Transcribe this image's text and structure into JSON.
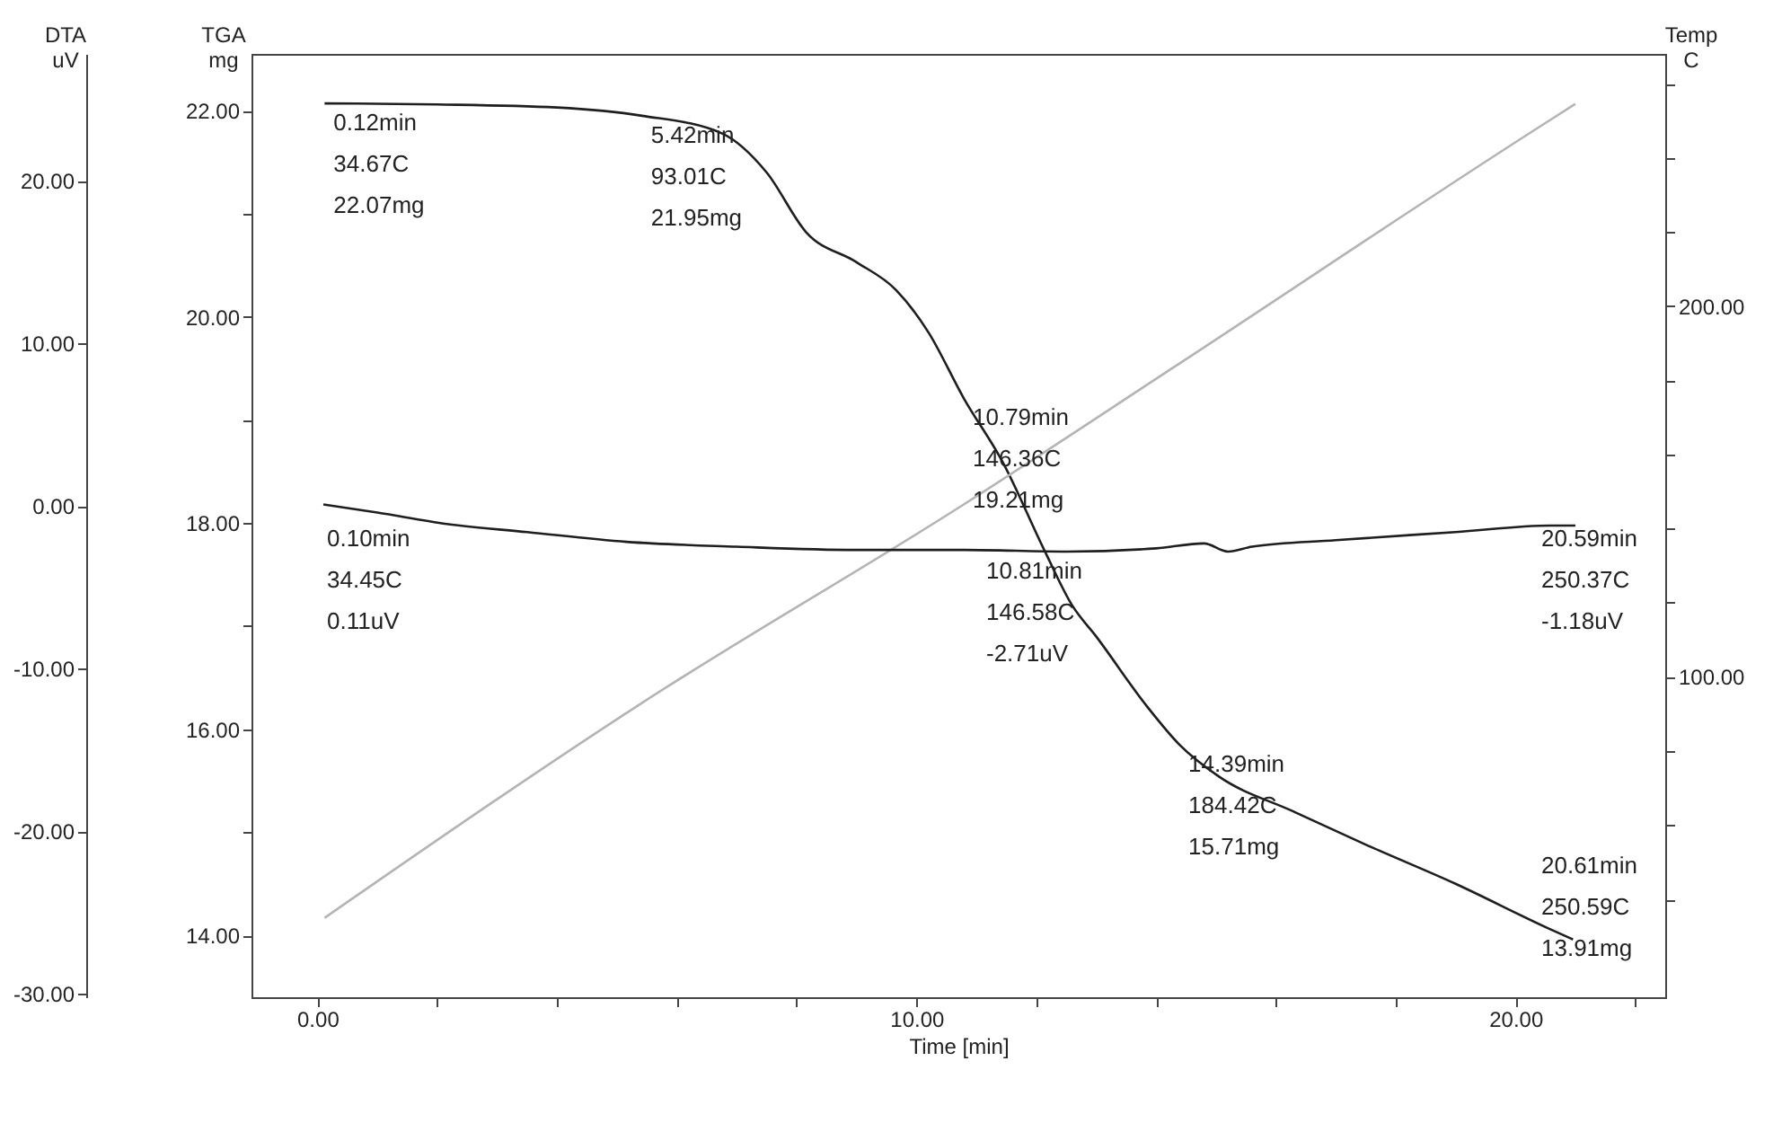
{
  "chart_data": {
    "type": "line",
    "xlabel": "Time [min]",
    "ylabel": "TGA mg",
    "y2label": "Temp C",
    "y3label": "DTA uV",
    "xlim": [
      -1.1,
      22.5
    ],
    "ylim": [
      13.4,
      22.55
    ],
    "y2lim": [
      13.6,
      268
    ],
    "y3lim": [
      -30.2,
      27.8
    ],
    "xticks": [
      {
        "value": 0,
        "label": "0.00"
      },
      {
        "value": 2,
        "label": null
      },
      {
        "value": 4,
        "label": null
      },
      {
        "value": 6,
        "label": null
      },
      {
        "value": 8,
        "label": null
      },
      {
        "value": 10,
        "label": "10.00"
      },
      {
        "value": 12,
        "label": null
      },
      {
        "value": 14,
        "label": null
      },
      {
        "value": 16,
        "label": null
      },
      {
        "value": 18,
        "label": null
      },
      {
        "value": 20,
        "label": "20.00"
      },
      {
        "value": 22,
        "label": null
      }
    ],
    "yticks": [
      {
        "value": 14,
        "label": "14.00"
      },
      {
        "value": 15,
        "label": null
      },
      {
        "value": 16,
        "label": "16.00"
      },
      {
        "value": 17,
        "label": null
      },
      {
        "value": 18,
        "label": "18.00"
      },
      {
        "value": 19,
        "label": null
      },
      {
        "value": 20,
        "label": "20.00"
      },
      {
        "value": 21,
        "label": null
      },
      {
        "value": 22,
        "label": "22.00"
      }
    ],
    "y2ticks": [
      {
        "value": 40,
        "label": null
      },
      {
        "value": 60,
        "label": null
      },
      {
        "value": 80,
        "label": null
      },
      {
        "value": 100,
        "label": "100.00"
      },
      {
        "value": 120,
        "label": null
      },
      {
        "value": 140,
        "label": null
      },
      {
        "value": 160,
        "label": null
      },
      {
        "value": 180,
        "label": null
      },
      {
        "value": 200,
        "label": "200.00"
      },
      {
        "value": 220,
        "label": null
      },
      {
        "value": 240,
        "label": null
      },
      {
        "value": 260,
        "label": null
      }
    ],
    "y3ticks": [
      {
        "value": -30,
        "label": "-30.00"
      },
      {
        "value": -20,
        "label": "-20.00"
      },
      {
        "value": -10,
        "label": "-10.00"
      },
      {
        "value": 0,
        "label": "0.00"
      },
      {
        "value": 10,
        "label": "10.00"
      },
      {
        "value": 20,
        "label": "20.00"
      }
    ],
    "grid": false,
    "line_style": "solid",
    "series": [
      {
        "color": "#1e1e1e",
        "axis": "y",
        "x": [
          0.12,
          2.0,
          4.0,
          5.42,
          6.75,
          7.5,
          8.16,
          9.0,
          9.66,
          10.2,
          10.79,
          11.45,
          12.14,
          12.6,
          13.0,
          13.85,
          14.39,
          15.05,
          16.3,
          17.54,
          19.0,
          20.54,
          20.96
        ],
        "values": [
          22.07,
          22.06,
          22.03,
          21.95,
          21.78,
          21.4,
          20.82,
          20.53,
          20.26,
          19.85,
          19.21,
          18.58,
          17.73,
          17.2,
          16.9,
          16.22,
          15.85,
          15.54,
          15.2,
          14.87,
          14.5,
          14.07,
          13.96
        ]
      },
      {
        "color": "#b4b4b4",
        "axis": "y2",
        "x": [
          0.12,
          5.42,
          10.79,
          14.39,
          20.61,
          21.0
        ],
        "values": [
          35,
          93,
          146.5,
          184.5,
          250.5,
          254.5
        ]
      },
      {
        "color": "#1e1e1e",
        "axis": "y3",
        "x": [
          0.1,
          1.0,
          2.16,
          3.5,
          5.16,
          7.0,
          9.0,
          10.81,
          12.5,
          14.0,
          14.8,
          15.2,
          15.6,
          17.0,
          19.0,
          20.59,
          21.0
        ],
        "values": [
          0.1,
          -0.4,
          -1.1,
          -1.6,
          -2.2,
          -2.5,
          -2.7,
          -2.7,
          -2.8,
          -2.6,
          -2.3,
          -2.8,
          -2.5,
          -2.1,
          -1.6,
          -1.2,
          -1.2
        ]
      }
    ],
    "annotations": [
      {
        "text": "0.12min\n34.67C\n22.07mg",
        "x": 0.12,
        "y": 22.07
      },
      {
        "text": "5.42min\n93.01C\n21.95mg",
        "x": 5.42,
        "y": 21.95
      },
      {
        "text": "10.79min\n146.36C\n19.21mg",
        "x": 10.79,
        "y": 19.21
      },
      "0.10min\n34.45C\n0.11uV",
      "10.81min\n146.58C\n-2.71uV",
      "20.59min\n250.37C\n-1.18uV",
      {
        "text": "14.39min\n184.42C\n15.71mg",
        "x": 14.39,
        "y": 15.85
      },
      "20.61min\n250.59C\n13.91mg"
    ]
  }
}
